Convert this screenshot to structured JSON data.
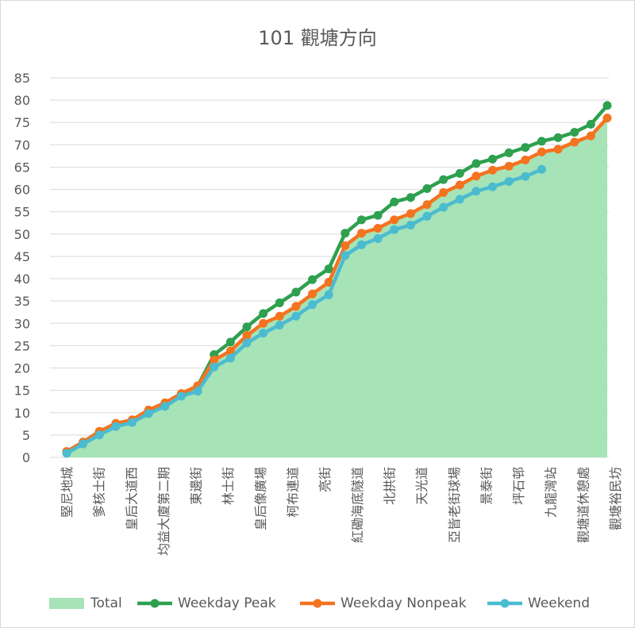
{
  "chart_data": {
    "type": "line",
    "title": "101 觀塘方向",
    "ylim": [
      0,
      85
    ],
    "yticks": [
      0,
      5,
      10,
      15,
      20,
      25,
      30,
      35,
      40,
      45,
      50,
      55,
      60,
      65,
      70,
      75,
      80,
      85
    ],
    "grid": true,
    "legend_position": "bottom",
    "x_tick_labels": [
      "堅尼地城",
      "爹核士街",
      "皇后大道西",
      "均益大廈第二期",
      "東邊街",
      "林士街",
      "皇后像廣場",
      "柯布連道",
      "亮街",
      "紅磡海底隧道",
      "北拱街",
      "天光道",
      "亞皆老街球場",
      "景泰街",
      "坪石邨",
      "九龍灣站",
      "觀塘道休憩處",
      "觀塘裕民坊"
    ],
    "series": [
      {
        "name": "Total",
        "kind": "area",
        "color": "#a6e3b7",
        "values": [
          1.3,
          3.4,
          5.6,
          7.3,
          8.2,
          10.4,
          11.8,
          14.1,
          15.8,
          22.0,
          24.0,
          27.5,
          30.2,
          31.8,
          33.8,
          36.5,
          39.0,
          47.5,
          50.2,
          51.4,
          53.2,
          54.6,
          56.6,
          59.2,
          61.0,
          63.0,
          64.4,
          65.4,
          66.8,
          68.4,
          69.0,
          70.6,
          72.0,
          76.0
        ]
      },
      {
        "name": "Weekday Peak",
        "kind": "line",
        "color": "#2ea04f",
        "values": [
          1.3,
          3.4,
          5.8,
          7.4,
          8.3,
          10.5,
          12.0,
          14.2,
          16.0,
          23.0,
          25.8,
          29.2,
          32.2,
          34.6,
          37.0,
          39.8,
          42.2,
          50.2,
          53.2,
          54.2,
          57.2,
          58.2,
          60.2,
          62.2,
          63.6,
          65.8,
          66.8,
          68.2,
          69.4,
          70.8,
          71.6,
          72.8,
          74.6,
          78.8
        ]
      },
      {
        "name": "Weekday Nonpeak",
        "kind": "line",
        "color": "#f4731f",
        "values": [
          1.3,
          3.4,
          5.8,
          7.6,
          8.4,
          10.6,
          12.2,
          14.3,
          16.0,
          21.8,
          23.8,
          27.3,
          30.0,
          31.6,
          33.8,
          36.6,
          39.2,
          47.4,
          50.2,
          51.3,
          53.2,
          54.6,
          56.6,
          59.3,
          61.0,
          63.0,
          64.3,
          65.2,
          66.6,
          68.4,
          69.0,
          70.6,
          72.0,
          76.0
        ]
      },
      {
        "name": "Weekend",
        "kind": "line",
        "color": "#4bbbd0",
        "values": [
          0.9,
          3.0,
          5.0,
          6.9,
          7.8,
          9.8,
          11.4,
          13.7,
          14.8,
          20.2,
          22.2,
          25.6,
          27.8,
          29.6,
          31.6,
          34.2,
          36.4,
          45.2,
          47.6,
          49.0,
          51.0,
          52.0,
          54.0,
          56.0,
          57.8,
          59.6,
          60.6,
          61.8,
          62.9,
          64.5,
          null,
          null,
          null,
          null
        ]
      }
    ]
  }
}
